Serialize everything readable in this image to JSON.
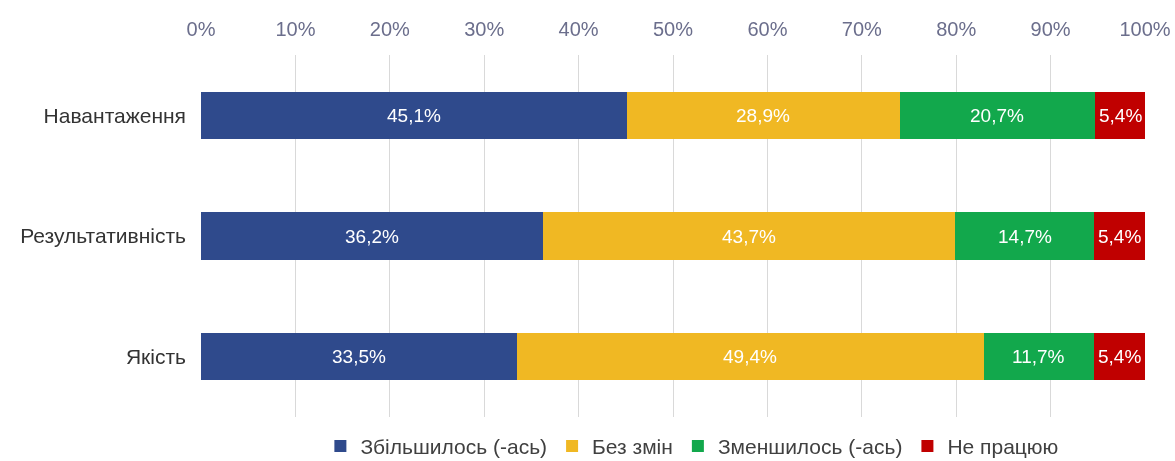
{
  "chart_data": {
    "type": "bar",
    "orientation": "horizontal",
    "stacked": true,
    "categories": [
      "Навантаження",
      "Результативність",
      "Якість"
    ],
    "series": [
      {
        "name": "Збільшилось (-ась)",
        "color": "#2f4a8c",
        "values": [
          45.1,
          36.2,
          33.5
        ],
        "value_labels": [
          "45,1%",
          "36,2%",
          "33,5%"
        ]
      },
      {
        "name": "Без змін",
        "color": "#f0b823",
        "values": [
          28.9,
          43.7,
          49.4
        ],
        "value_labels": [
          "28,9%",
          "43,7%",
          "49,4%"
        ]
      },
      {
        "name": "Зменшилось (-ась)",
        "color": "#12a84c",
        "values": [
          20.7,
          14.7,
          11.7
        ],
        "value_labels": [
          "20,7%",
          "14,7%",
          "11,7%"
        ]
      },
      {
        "name": "Не працюю",
        "color": "#c00000",
        "values": [
          5.4,
          5.4,
          5.4
        ],
        "value_labels": [
          "5,4%",
          "5,4%",
          "5,4%"
        ]
      }
    ],
    "xlim": [
      0,
      100
    ],
    "xticks": [
      {
        "value": 0,
        "label": "0%"
      },
      {
        "value": 10,
        "label": "10%"
      },
      {
        "value": 20,
        "label": "20%"
      },
      {
        "value": 30,
        "label": "30%"
      },
      {
        "value": 40,
        "label": "40%"
      },
      {
        "value": 50,
        "label": "50%"
      },
      {
        "value": 60,
        "label": "60%"
      },
      {
        "value": 70,
        "label": "70%"
      },
      {
        "value": 80,
        "label": "80%"
      },
      {
        "value": 90,
        "label": "90%"
      },
      {
        "value": 100,
        "label": "100%"
      }
    ],
    "grid": "x",
    "legend": "bottom"
  }
}
